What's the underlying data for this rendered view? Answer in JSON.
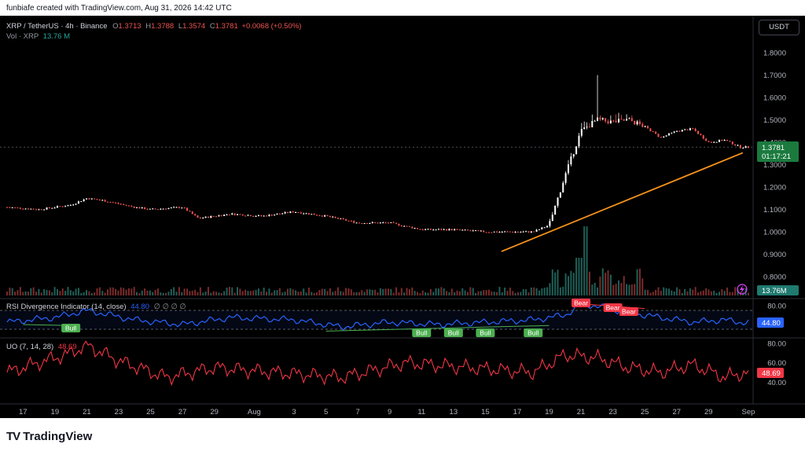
{
  "header": {
    "attribution": "funbiafe created with TradingView.com, Aug 31, 2026 14:42 UTC"
  },
  "legend": {
    "symbol": "XRP / TetherUS · 4h · Binance",
    "open_label": "O",
    "open": "1.3713",
    "high_label": "H",
    "high": "1.3788",
    "low_label": "L",
    "low": "1.3574",
    "close_label": "C",
    "close": "1.3781",
    "change": "+0.0068 (+0.50%)",
    "vol_label": "Vol · XRP",
    "vol_value": "13.76 M"
  },
  "currency_button": "USDT",
  "price_axis": {
    "ticks": [
      "1.8000",
      "1.7000",
      "1.6000",
      "1.5000",
      "1.4000",
      "1.3000",
      "1.2000",
      "1.1000",
      "1.0000",
      "0.9000",
      "0.8000"
    ],
    "last_price": "1.3781",
    "countdown": "01:17:21",
    "volume_badge": "13.76M"
  },
  "rsi": {
    "title": "RSI Divergence Indicator (14, close)",
    "value": "44.80",
    "ticks": [
      "80.00"
    ],
    "badge": "44.80",
    "placeholders": "∅ ∅ ∅ ∅"
  },
  "uo": {
    "title": "UO (7, 14, 28)",
    "value": "48.69",
    "ticks": [
      "80.00",
      "60.00",
      "40.00"
    ],
    "badge": "48.69"
  },
  "time_axis": [
    "17",
    "19",
    "21",
    "23",
    "25",
    "27",
    "29",
    "Aug",
    "3",
    "5",
    "7",
    "9",
    "11",
    "13",
    "15",
    "17",
    "19",
    "21",
    "23",
    "25",
    "27",
    "29",
    "Sep"
  ],
  "footer": {
    "brand": "TradingView",
    "brand_mark": "TV"
  },
  "colors": {
    "up": "#26a69a",
    "down": "#ef5350",
    "rsi": "#2962ff",
    "uo": "#f23645",
    "trend": "#f7931a",
    "bull": "#4caf50",
    "bear": "#f23645"
  },
  "chart_data": [
    {
      "type": "candlestick",
      "title": "XRP / TetherUS · 4h · Binance",
      "x_ticks": [
        "17",
        "19",
        "21",
        "23",
        "25",
        "27",
        "29",
        "Aug",
        "3",
        "5",
        "7",
        "9",
        "11",
        "13",
        "15",
        "17",
        "19",
        "21",
        "23",
        "25",
        "27",
        "29",
        "Sep"
      ],
      "y_range": [
        0.75,
        1.85
      ],
      "y_ticks": [
        0.8,
        0.9,
        1.0,
        1.1,
        1.2,
        1.3,
        1.4,
        1.5,
        1.6,
        1.7,
        1.8
      ],
      "close_path": [
        {
          "date": "Jul 16",
          "close": 1.11
        },
        {
          "date": "Jul 18",
          "close": 1.1
        },
        {
          "date": "Jul 20",
          "close": 1.12
        },
        {
          "date": "Jul 21",
          "close": 1.15
        },
        {
          "date": "Jul 22",
          "close": 1.14
        },
        {
          "date": "Jul 24",
          "close": 1.11
        },
        {
          "date": "Jul 25",
          "close": 1.1
        },
        {
          "date": "Jul 27",
          "close": 1.11
        },
        {
          "date": "Jul 28",
          "close": 1.06
        },
        {
          "date": "Jul 30",
          "close": 1.08
        },
        {
          "date": "Aug 1",
          "close": 1.07
        },
        {
          "date": "Aug 3",
          "close": 1.09
        },
        {
          "date": "Aug 5",
          "close": 1.07
        },
        {
          "date": "Aug 7",
          "close": 1.04
        },
        {
          "date": "Aug 9",
          "close": 1.04
        },
        {
          "date": "Aug 11",
          "close": 1.01
        },
        {
          "date": "Aug 13",
          "close": 1.01
        },
        {
          "date": "Aug 15",
          "close": 1.0
        },
        {
          "date": "Aug 17",
          "close": 1.0
        },
        {
          "date": "Aug 18",
          "close": 1.0
        },
        {
          "date": "Aug 19",
          "close": 1.03
        },
        {
          "date": "Aug 20",
          "close": 1.25
        },
        {
          "date": "Aug 21",
          "close": 1.45
        },
        {
          "date": "Aug 22",
          "close": 1.5
        },
        {
          "date": "Aug 23",
          "close": 1.49
        },
        {
          "date": "Aug 24",
          "close": 1.5
        },
        {
          "date": "Aug 25",
          "close": 1.47
        },
        {
          "date": "Aug 26",
          "close": 1.42
        },
        {
          "date": "Aug 27",
          "close": 1.45
        },
        {
          "date": "Aug 28",
          "close": 1.46
        },
        {
          "date": "Aug 29",
          "close": 1.4
        },
        {
          "date": "Aug 30",
          "close": 1.41
        },
        {
          "date": "Aug 31",
          "close": 1.378
        }
      ],
      "spike_high": {
        "date": "Aug 22",
        "high": 1.7
      },
      "trendline": {
        "from": {
          "date": "Aug 17",
          "price": 0.93
        },
        "to": {
          "date": "Aug 31",
          "price": 1.36
        }
      }
    },
    {
      "type": "bar",
      "title": "Vol · XRP",
      "last": 13.76,
      "unit": "M",
      "note": "volume spike around Aug 21-22"
    },
    {
      "type": "line",
      "title": "RSI Divergence Indicator (14, close)",
      "y_ticks": [
        80
      ],
      "last": 44.8,
      "x": [
        "Jul 16",
        "Jul 19",
        "Jul 21",
        "Jul 24",
        "Jul 27",
        "Jul 30",
        "Aug 3",
        "Aug 6",
        "Aug 9",
        "Aug 12",
        "Aug 15",
        "Aug 18",
        "Aug 20",
        "Aug 21",
        "Aug 22",
        "Aug 24",
        "Aug 26",
        "Aug 28",
        "Aug 30",
        "Aug 31"
      ],
      "values": [
        45,
        55,
        70,
        50,
        40,
        55,
        50,
        35,
        45,
        40,
        45,
        50,
        60,
        82,
        80,
        65,
        55,
        45,
        50,
        44.8
      ],
      "labels": [
        {
          "text": "Bull",
          "date": "Jul 20"
        },
        {
          "text": "Bull",
          "date": "Aug 11"
        },
        {
          "text": "Bull",
          "date": "Aug 13"
        },
        {
          "text": "Bull",
          "date": "Aug 15"
        },
        {
          "text": "Bull",
          "date": "Aug 18"
        },
        {
          "text": "Bear",
          "date": "Aug 21"
        },
        {
          "text": "Bear",
          "date": "Aug 23"
        },
        {
          "text": "Bear",
          "date": "Aug 24"
        }
      ]
    },
    {
      "type": "line",
      "title": "UO (7, 14, 28)",
      "y_ticks": [
        40,
        60,
        80
      ],
      "last": 48.69,
      "x": [
        "Jul 16",
        "Jul 18",
        "Jul 20",
        "Jul 21",
        "Jul 23",
        "Jul 26",
        "Jul 29",
        "Aug 2",
        "Aug 6",
        "Aug 10",
        "Aug 14",
        "Aug 18",
        "Aug 20",
        "Aug 22",
        "Aug 24",
        "Aug 26",
        "Aug 28",
        "Aug 30",
        "Aug 31"
      ],
      "values": [
        50,
        60,
        70,
        78,
        62,
        45,
        55,
        50,
        45,
        60,
        55,
        50,
        68,
        65,
        55,
        50,
        58,
        45,
        48.69
      ]
    }
  ]
}
